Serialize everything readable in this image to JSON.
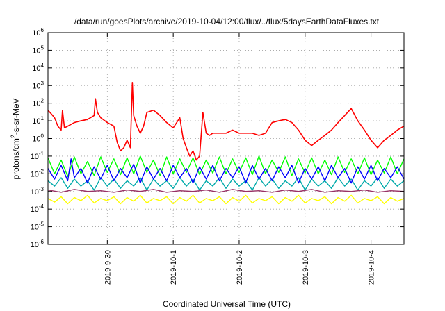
{
  "chart_data": {
    "type": "line",
    "title": "/data/run/goesPlots/archive/2019-10-04/12:00/flux/../flux/5daysEarthDataFluxes.txt",
    "xlabel": "Coordinated Universal Time (UTC)",
    "ylabel": {
      "base": "protons/cm",
      "sup": "2",
      "rest": "-s-sr-MeV"
    },
    "yscale": "log",
    "ylim": [
      1e-06,
      1000000.0
    ],
    "xlim": [
      0,
      5.4
    ],
    "grid": true,
    "yticks": [
      {
        "exp": -6,
        "label": "10",
        "sup": "-6"
      },
      {
        "exp": -5,
        "label": "10",
        "sup": "-5"
      },
      {
        "exp": -4,
        "label": "10",
        "sup": "-4"
      },
      {
        "exp": -3,
        "label": "10",
        "sup": "-3"
      },
      {
        "exp": -2,
        "label": "10",
        "sup": "-2"
      },
      {
        "exp": -1,
        "label": "10",
        "sup": "-1"
      },
      {
        "exp": 0,
        "label": "10",
        "sup": "0"
      },
      {
        "exp": 1,
        "label": "10",
        "sup": "1"
      },
      {
        "exp": 2,
        "label": "10",
        "sup": "2"
      },
      {
        "exp": 3,
        "label": "10",
        "sup": "3"
      },
      {
        "exp": 4,
        "label": "10",
        "sup": "4"
      },
      {
        "exp": 5,
        "label": "10",
        "sup": "5"
      },
      {
        "exp": 6,
        "label": "10",
        "sup": "6"
      }
    ],
    "xticks": [
      {
        "x": 0.9,
        "label": "2019-9-30"
      },
      {
        "x": 1.9,
        "label": "2019-10-1"
      },
      {
        "x": 2.9,
        "label": "2019-10-2"
      },
      {
        "x": 3.9,
        "label": "2019-10-3"
      },
      {
        "x": 4.9,
        "label": "2019-10-4"
      }
    ],
    "series": [
      {
        "color": "#ff0000",
        "x": [
          0.0,
          0.05,
          0.1,
          0.15,
          0.2,
          0.22,
          0.25,
          0.3,
          0.4,
          0.5,
          0.6,
          0.7,
          0.72,
          0.75,
          0.8,
          0.9,
          1.0,
          1.05,
          1.1,
          1.15,
          1.2,
          1.25,
          1.28,
          1.3,
          1.35,
          1.4,
          1.45,
          1.5,
          1.6,
          1.7,
          1.8,
          1.9,
          2.0,
          2.05,
          2.1,
          2.15,
          2.2,
          2.25,
          2.3,
          2.35,
          2.4,
          2.45,
          2.5,
          2.55,
          2.6,
          2.7,
          2.8,
          2.9,
          3.0,
          3.1,
          3.2,
          3.3,
          3.4,
          3.5,
          3.6,
          3.7,
          3.8,
          3.9,
          4.0,
          4.1,
          4.2,
          4.3,
          4.4,
          4.5,
          4.6,
          4.7,
          4.8,
          4.9,
          5.0,
          5.1,
          5.2,
          5.3,
          5.4
        ],
        "values": [
          40,
          25,
          15,
          5,
          3,
          40,
          4,
          5,
          8,
          10,
          12,
          20,
          180,
          30,
          15,
          8,
          5,
          0.6,
          0.2,
          0.3,
          0.8,
          0.3,
          1500,
          20,
          5,
          2,
          5,
          30,
          40,
          20,
          8,
          4,
          15,
          1,
          0.3,
          0.1,
          0.2,
          0.06,
          0.1,
          30,
          2,
          1.5,
          2,
          2,
          2,
          2,
          3,
          2,
          2,
          2,
          1.5,
          2,
          8,
          10,
          12,
          8,
          3,
          0.8,
          0.4,
          0.8,
          1.5,
          3,
          8,
          20,
          50,
          10,
          3,
          0.8,
          0.3,
          0.8,
          1.5,
          3,
          5
        ]
      },
      {
        "color": "#00ff00",
        "x": [
          0.0,
          0.1,
          0.2,
          0.3,
          0.4,
          0.5,
          0.6,
          0.7,
          0.8,
          0.9,
          1.0,
          1.1,
          1.2,
          1.3,
          1.4,
          1.5,
          1.6,
          1.7,
          1.8,
          1.9,
          2.0,
          2.1,
          2.2,
          2.3,
          2.4,
          2.5,
          2.6,
          2.7,
          2.8,
          2.9,
          3.0,
          3.1,
          3.2,
          3.3,
          3.4,
          3.5,
          3.6,
          3.7,
          3.8,
          3.9,
          4.0,
          4.1,
          4.2,
          4.3,
          4.4,
          4.5,
          4.6,
          4.7,
          4.8,
          4.9,
          5.0,
          5.1,
          5.2,
          5.3,
          5.4
        ],
        "values": [
          0.08,
          0.01,
          0.06,
          0.007,
          0.09,
          0.01,
          0.05,
          0.008,
          0.09,
          0.012,
          0.07,
          0.009,
          0.08,
          0.01,
          0.1,
          0.012,
          0.06,
          0.008,
          0.09,
          0.01,
          0.07,
          0.012,
          0.08,
          0.009,
          0.06,
          0.011,
          0.09,
          0.01,
          0.07,
          0.012,
          0.08,
          0.009,
          0.1,
          0.01,
          0.06,
          0.012,
          0.09,
          0.008,
          0.07,
          0.011,
          0.08,
          0.01,
          0.06,
          0.009,
          0.09,
          0.012,
          0.07,
          0.01,
          0.08,
          0.009,
          0.06,
          0.011,
          0.09,
          0.01,
          0.07
        ]
      },
      {
        "color": "#00aaaa",
        "x": [
          0.0,
          0.1,
          0.2,
          0.3,
          0.4,
          0.5,
          0.6,
          0.7,
          0.8,
          0.9,
          1.0,
          1.1,
          1.2,
          1.3,
          1.4,
          1.5,
          1.6,
          1.7,
          1.8,
          1.9,
          2.0,
          2.1,
          2.2,
          2.3,
          2.4,
          2.5,
          2.6,
          2.7,
          2.8,
          2.9,
          3.0,
          3.1,
          3.2,
          3.3,
          3.4,
          3.5,
          3.6,
          3.7,
          3.8,
          3.9,
          4.0,
          4.1,
          4.2,
          4.3,
          4.4,
          4.5,
          4.6,
          4.7,
          4.8,
          4.9,
          5.0,
          5.1,
          5.2,
          5.3,
          5.4
        ],
        "values": [
          0.004,
          0.002,
          0.006,
          0.0015,
          0.005,
          0.002,
          0.004,
          0.0012,
          0.006,
          0.002,
          0.005,
          0.0015,
          0.004,
          0.002,
          0.006,
          0.0012,
          0.005,
          0.002,
          0.004,
          0.0015,
          0.006,
          0.002,
          0.005,
          0.0012,
          0.004,
          0.002,
          0.006,
          0.0015,
          0.005,
          0.002,
          0.004,
          0.0012,
          0.006,
          0.002,
          0.005,
          0.0015,
          0.004,
          0.002,
          0.006,
          0.0012,
          0.005,
          0.002,
          0.004,
          0.0015,
          0.006,
          0.002,
          0.005,
          0.0012,
          0.004,
          0.002,
          0.006,
          0.0015,
          0.005,
          0.002,
          0.004
        ]
      },
      {
        "color": "#0000ff",
        "x": [
          0.0,
          0.1,
          0.2,
          0.3,
          0.35,
          0.4,
          0.5,
          0.6,
          0.7,
          0.8,
          0.9,
          1.0,
          1.1,
          1.2,
          1.3,
          1.4,
          1.5,
          1.6,
          1.7,
          1.8,
          1.9,
          2.0,
          2.1,
          2.2,
          2.3,
          2.4,
          2.5,
          2.6,
          2.7,
          2.8,
          2.9,
          3.0,
          3.1,
          3.2,
          3.3,
          3.4,
          3.5,
          3.6,
          3.7,
          3.8,
          3.9,
          4.0,
          4.1,
          4.2,
          4.3,
          4.4,
          4.5,
          4.6,
          4.7,
          4.8,
          4.9,
          5.0,
          5.1,
          5.2,
          5.3,
          5.4
        ],
        "values": [
          0.02,
          0.005,
          0.03,
          0.004,
          0.07,
          0.006,
          0.02,
          0.003,
          0.025,
          0.005,
          0.03,
          0.004,
          0.02,
          0.006,
          0.035,
          0.003,
          0.025,
          0.005,
          0.02,
          0.004,
          0.03,
          0.006,
          0.02,
          0.003,
          0.025,
          0.005,
          0.03,
          0.004,
          0.02,
          0.006,
          0.025,
          0.003,
          0.03,
          0.005,
          0.02,
          0.004,
          0.025,
          0.006,
          0.03,
          0.003,
          0.02,
          0.005,
          0.025,
          0.004,
          0.03,
          0.006,
          0.02,
          0.003,
          0.025,
          0.005,
          0.03,
          0.004,
          0.02,
          0.006,
          0.025,
          0.005
        ]
      },
      {
        "color": "#993366",
        "x": [
          0.0,
          0.2,
          0.4,
          0.6,
          0.8,
          1.0,
          1.2,
          1.4,
          1.6,
          1.8,
          2.0,
          2.2,
          2.4,
          2.6,
          2.8,
          3.0,
          3.2,
          3.4,
          3.6,
          3.8,
          4.0,
          4.2,
          4.4,
          4.6,
          4.8,
          5.0,
          5.2,
          5.4
        ],
        "values": [
          0.0012,
          0.0009,
          0.0013,
          0.001,
          0.0011,
          0.0009,
          0.0012,
          0.001,
          0.0013,
          0.0009,
          0.0011,
          0.001,
          0.0012,
          0.0009,
          0.0013,
          0.001,
          0.0011,
          0.0009,
          0.0012,
          0.001,
          0.0013,
          0.0009,
          0.0011,
          0.001,
          0.0012,
          0.0009,
          0.0011,
          0.001
        ]
      },
      {
        "color": "#ffff00",
        "x": [
          0.0,
          0.1,
          0.2,
          0.3,
          0.4,
          0.5,
          0.6,
          0.7,
          0.8,
          0.9,
          1.0,
          1.1,
          1.2,
          1.3,
          1.4,
          1.5,
          1.6,
          1.7,
          1.8,
          1.9,
          2.0,
          2.1,
          2.2,
          2.3,
          2.4,
          2.5,
          2.6,
          2.7,
          2.8,
          2.9,
          3.0,
          3.1,
          3.2,
          3.3,
          3.4,
          3.5,
          3.6,
          3.7,
          3.8,
          3.9,
          4.0,
          4.1,
          4.2,
          4.3,
          4.4,
          4.5,
          4.6,
          4.7,
          4.8,
          4.9,
          5.0,
          5.1,
          5.2,
          5.3,
          5.4
        ],
        "values": [
          0.0004,
          0.00025,
          0.0005,
          0.0002,
          0.00045,
          0.0003,
          0.0006,
          0.00022,
          0.0004,
          0.0003,
          0.0005,
          0.0002,
          0.00045,
          0.00028,
          0.0006,
          0.00022,
          0.0004,
          0.0003,
          0.0005,
          0.0002,
          0.00045,
          0.00028,
          0.0006,
          0.00022,
          0.0004,
          0.0003,
          0.0005,
          0.0002,
          0.00045,
          0.00028,
          0.0006,
          0.00022,
          0.0004,
          0.0003,
          0.0005,
          0.0002,
          0.00045,
          0.00028,
          0.0006,
          0.00022,
          0.0004,
          0.0003,
          0.0005,
          0.0002,
          0.00045,
          0.00028,
          0.0006,
          0.00022,
          0.0004,
          0.0003,
          0.0005,
          0.0002,
          0.00045,
          0.00028,
          0.0004
        ]
      }
    ]
  }
}
